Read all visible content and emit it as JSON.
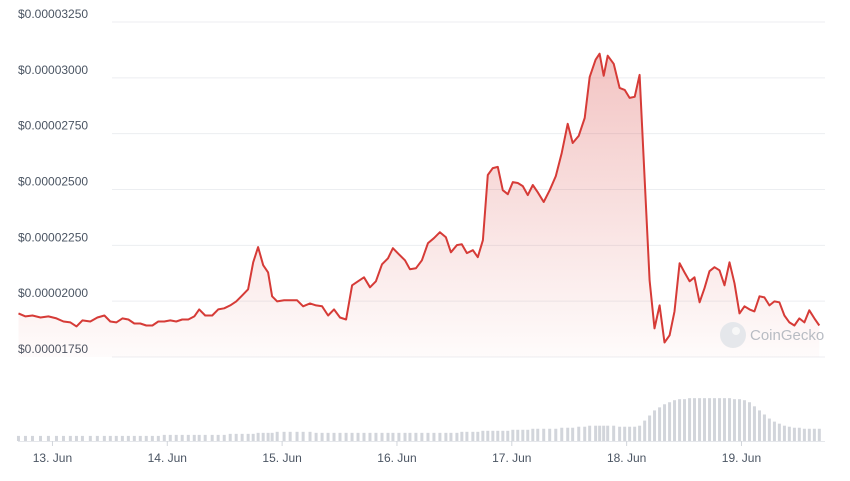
{
  "chart_data": {
    "type": "line",
    "watermark": "CoinGecko",
    "x": [
      12.704,
      12.765,
      12.826,
      12.896,
      12.965,
      13.035,
      13.096,
      13.156,
      13.209,
      13.261,
      13.33,
      13.391,
      13.452,
      13.504,
      13.556,
      13.609,
      13.661,
      13.713,
      13.765,
      13.817,
      13.87,
      13.922,
      13.974,
      14.026,
      14.078,
      14.13,
      14.183,
      14.235,
      14.278,
      14.33,
      14.391,
      14.443,
      14.496,
      14.548,
      14.6,
      14.652,
      14.704,
      14.748,
      14.791,
      14.835,
      14.878,
      14.913,
      14.957,
      15.017,
      15.07,
      15.13,
      15.183,
      15.243,
      15.296,
      15.348,
      15.4,
      15.452,
      15.504,
      15.557,
      15.609,
      15.661,
      15.713,
      15.765,
      15.817,
      15.87,
      15.922,
      15.965,
      16.017,
      16.07,
      16.113,
      16.165,
      16.217,
      16.27,
      16.322,
      16.374,
      16.426,
      16.47,
      16.522,
      16.565,
      16.609,
      16.661,
      16.704,
      16.748,
      16.791,
      16.835,
      16.878,
      16.922,
      16.965,
      17.009,
      17.052,
      17.096,
      17.139,
      17.183,
      17.226,
      17.278,
      17.33,
      17.383,
      17.435,
      17.487,
      17.53,
      17.583,
      17.635,
      17.678,
      17.73,
      17.765,
      17.8,
      17.835,
      17.887,
      17.939,
      17.983,
      18.026,
      18.07,
      18.113,
      18.157,
      18.2,
      18.243,
      18.287,
      18.33,
      18.374,
      18.417,
      18.461,
      18.504,
      18.548,
      18.591,
      18.635,
      18.678,
      18.722,
      18.765,
      18.809,
      18.852,
      18.896,
      18.939,
      18.983,
      19.026,
      19.07,
      19.113,
      19.157,
      19.2,
      19.243,
      19.287,
      19.33,
      19.374,
      19.417,
      19.461,
      19.504,
      19.548,
      19.591,
      19.635,
      19.678
    ],
    "series": [
      {
        "color": "#d63b37",
        "values": [
          1.945e-05,
          1.932e-05,
          1.936e-05,
          1.927e-05,
          1.932e-05,
          1.923e-05,
          1.909e-05,
          1.905e-05,
          1.887e-05,
          1.914e-05,
          1.909e-05,
          1.927e-05,
          1.936e-05,
          1.909e-05,
          1.905e-05,
          1.923e-05,
          1.918e-05,
          1.9e-05,
          1.9e-05,
          1.891e-05,
          1.891e-05,
          1.909e-05,
          1.909e-05,
          1.914e-05,
          1.909e-05,
          1.918e-05,
          1.918e-05,
          1.932e-05,
          1.963e-05,
          1.936e-05,
          1.936e-05,
          1.963e-05,
          1.968e-05,
          1.981e-05,
          1.999e-05,
          2.026e-05,
          2.053e-05,
          2.174e-05,
          2.242e-05,
          2.161e-05,
          2.129e-05,
          2.022e-05,
          1.999e-05,
          2.004e-05,
          2.004e-05,
          2.004e-05,
          1.977e-05,
          1.99e-05,
          1.981e-05,
          1.977e-05,
          1.936e-05,
          1.963e-05,
          1.927e-05,
          1.918e-05,
          2.071e-05,
          2.089e-05,
          2.107e-05,
          2.062e-05,
          2.089e-05,
          2.165e-05,
          2.192e-05,
          2.237e-05,
          2.21e-05,
          2.183e-05,
          2.143e-05,
          2.147e-05,
          2.183e-05,
          2.26e-05,
          2.282e-05,
          2.309e-05,
          2.286e-05,
          2.219e-05,
          2.251e-05,
          2.255e-05,
          2.215e-05,
          2.228e-05,
          2.197e-05,
          2.273e-05,
          2.565e-05,
          2.596e-05,
          2.601e-05,
          2.497e-05,
          2.479e-05,
          2.533e-05,
          2.529e-05,
          2.515e-05,
          2.475e-05,
          2.52e-05,
          2.488e-05,
          2.444e-05,
          2.497e-05,
          2.56e-05,
          2.663e-05,
          2.794e-05,
          2.708e-05,
          2.74e-05,
          2.82e-05,
          3.004e-05,
          3.081e-05,
          3.108e-05,
          3.009e-05,
          3.099e-05,
          3.063e-05,
          2.955e-05,
          2.946e-05,
          2.91e-05,
          2.915e-05,
          3.013e-05,
          2.542e-05,
          2.093e-05,
          1.878e-05,
          1.981e-05,
          1.815e-05,
          1.847e-05,
          1.954e-05,
          2.17e-05,
          2.129e-05,
          2.089e-05,
          2.107e-05,
          1.995e-05,
          2.058e-05,
          2.134e-05,
          2.152e-05,
          2.138e-05,
          2.071e-05,
          2.174e-05,
          2.08e-05,
          1.945e-05,
          1.977e-05,
          1.963e-05,
          1.954e-05,
          2.022e-05,
          2.017e-05,
          1.981e-05,
          1.999e-05,
          1.995e-05,
          1.936e-05,
          1.905e-05,
          1.891e-05,
          1.923e-05,
          1.905e-05,
          1.959e-05,
          1.923e-05,
          1.891e-05
        ]
      },
      {
        "type": "bar",
        "axis": "y2",
        "color": "#d2d5db",
        "values": [
          5,
          5,
          5,
          5,
          5,
          5,
          5,
          5,
          5,
          5,
          5,
          5,
          5,
          5,
          5,
          5,
          5,
          5,
          5,
          5,
          5,
          5,
          6,
          6,
          6,
          6,
          6,
          6,
          6,
          6,
          6,
          6,
          6,
          7,
          7,
          7,
          7,
          7,
          8,
          8,
          8,
          8,
          9,
          9,
          9,
          9,
          9,
          9,
          8,
          8,
          8,
          8,
          8,
          8,
          8,
          8,
          8,
          8,
          8,
          8,
          8,
          8,
          8,
          8,
          8,
          8,
          8,
          8,
          8,
          8,
          8,
          8,
          8,
          9,
          9,
          9,
          9,
          10,
          10,
          10,
          10,
          10,
          10,
          11,
          11,
          11,
          11,
          12,
          12,
          12,
          12,
          12,
          13,
          13,
          13,
          14,
          14,
          15,
          15,
          15,
          15,
          15,
          15,
          14,
          14,
          14,
          14,
          15,
          20,
          25,
          30,
          33,
          36,
          38,
          40,
          41,
          41,
          42,
          42,
          42,
          42,
          42,
          42,
          42,
          42,
          42,
          41,
          41,
          40,
          38,
          34,
          30,
          26,
          22,
          19,
          17,
          15,
          14,
          13,
          13,
          12,
          12,
          12,
          12
        ]
      }
    ],
    "xlim": [
      12.7,
      19.71
    ],
    "xticks": [
      {
        "value": 13,
        "label": "13. Jun"
      },
      {
        "value": 14,
        "label": "14. Jun"
      },
      {
        "value": 15,
        "label": "15. Jun"
      },
      {
        "value": 16,
        "label": "16. Jun"
      },
      {
        "value": 17,
        "label": "17. Jun"
      },
      {
        "value": 18,
        "label": "18. Jun"
      },
      {
        "value": 19,
        "label": "19. Jun"
      }
    ],
    "ylim": [
      1.75e-05,
      3.25e-05
    ],
    "yticks": [
      {
        "value": 1.75e-05,
        "label": "$0.00001750"
      },
      {
        "value": 2e-05,
        "label": "$0.00002000"
      },
      {
        "value": 2.25e-05,
        "label": "$0.00002250"
      },
      {
        "value": 2.5e-05,
        "label": "$0.00002500"
      },
      {
        "value": 2.75e-05,
        "label": "$0.00002750"
      },
      {
        "value": 3e-05,
        "label": "$0.00003000"
      },
      {
        "value": 3.25e-05,
        "label": "$0.00003250"
      }
    ],
    "y2lim": [
      0,
      50
    ],
    "grid": true
  }
}
